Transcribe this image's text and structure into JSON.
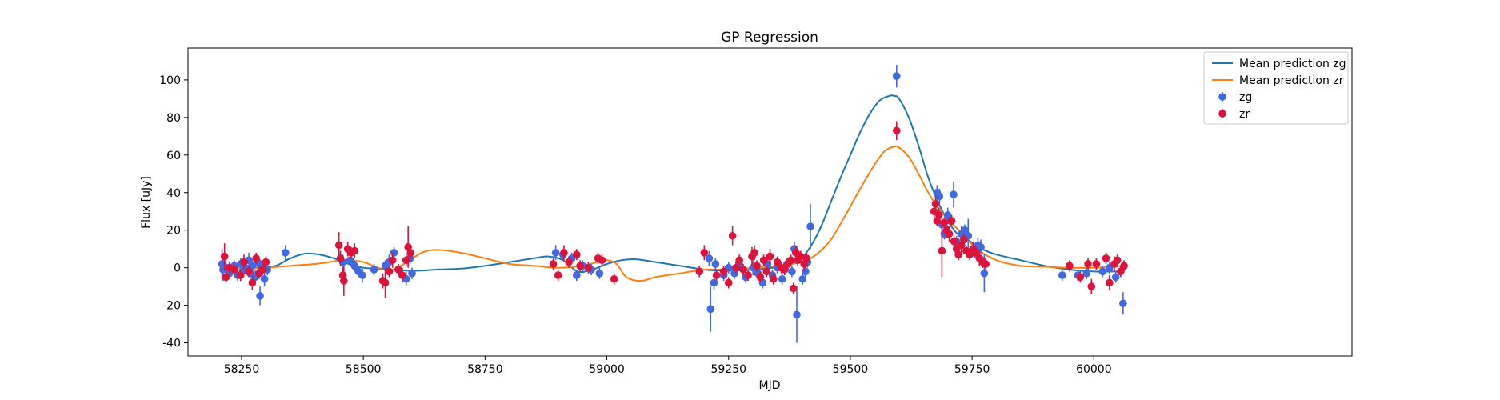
{
  "chart_data": {
    "type": "scatter",
    "title": "GP Regression",
    "xlabel": "MJD",
    "ylabel": "Flux [uJy]",
    "xlim": [
      58140,
      60530
    ],
    "ylim": [
      -47,
      117
    ],
    "x_ticks": [
      58250,
      58500,
      58750,
      59000,
      59250,
      59500,
      59750,
      60000
    ],
    "y_ticks": [
      -40,
      -20,
      0,
      20,
      40,
      60,
      80,
      100
    ],
    "grid": false,
    "legend_position": "top-right",
    "legend": [
      "Mean prediction zg",
      "Mean prediction zr",
      "zg",
      "zr"
    ],
    "lines": [
      {
        "name": "Mean prediction zg",
        "color": "#1f77b4",
        "x": [
          58210,
          58250,
          58290,
          58320,
          58350,
          58380,
          58410,
          58440,
          58470,
          58500,
          58530,
          58560,
          58590,
          58620,
          58650,
          58700,
          58750,
          58800,
          58850,
          58880,
          58910,
          58940,
          58970,
          59000,
          59030,
          59060,
          59100,
          59150,
          59200,
          59230,
          59260,
          59300,
          59340,
          59380,
          59400,
          59420,
          59440,
          59460,
          59480,
          59500,
          59520,
          59540,
          59560,
          59580,
          59590,
          59600,
          59620,
          59640,
          59660,
          59680,
          59700,
          59720,
          59740,
          59770,
          59800,
          59850,
          59900,
          59950,
          60000,
          60040,
          60060
        ],
        "y": [
          0,
          0.5,
          0,
          1,
          5,
          7.5,
          7,
          5,
          2,
          0,
          -0.5,
          -1,
          -1.5,
          -1.5,
          -1,
          -0.5,
          1,
          3,
          5,
          6,
          4,
          -2,
          -1,
          2,
          4,
          4.5,
          3,
          1,
          -1,
          -1.5,
          -1.5,
          -1,
          0,
          2,
          5,
          12,
          22,
          35,
          48,
          60,
          72,
          82,
          89,
          91.5,
          91.5,
          90,
          80,
          65,
          48,
          35,
          25,
          18,
          15,
          10,
          7,
          4,
          1,
          -1,
          -2,
          -2,
          -2
        ]
      },
      {
        "name": "Mean prediction zr",
        "color": "#ff7f0e",
        "x": [
          58210,
          58250,
          58300,
          58350,
          58400,
          58430,
          58460,
          58500,
          58530,
          58560,
          58590,
          58620,
          58650,
          58700,
          58750,
          58800,
          58850,
          58900,
          58950,
          58980,
          59000,
          59020,
          59040,
          59070,
          59100,
          59150,
          59200,
          59250,
          59300,
          59350,
          59400,
          59430,
          59460,
          59490,
          59520,
          59550,
          59570,
          59590,
          59600,
          59620,
          59640,
          59660,
          59680,
          59700,
          59730,
          59760,
          59800,
          59850,
          59900,
          59950,
          60000,
          60040,
          60060
        ],
        "y": [
          0,
          -0.5,
          0,
          1,
          2,
          3,
          4,
          3,
          0,
          -1,
          3,
          8,
          9.5,
          8,
          5,
          2,
          1,
          0,
          1,
          3,
          4,
          2,
          -5,
          -7,
          -5,
          -3,
          -1,
          -1,
          0,
          1,
          3,
          7,
          15,
          28,
          42,
          55,
          62,
          64.5,
          64,
          59,
          50,
          40,
          32,
          26,
          18,
          10,
          4,
          1,
          0.5,
          0,
          0,
          0.5,
          1
        ]
      }
    ],
    "series": [
      {
        "name": "zg",
        "color": "#4169e1",
        "points": [
          [
            58210,
            2,
            8
          ],
          [
            58212,
            -1,
            6
          ],
          [
            58218,
            0,
            4
          ],
          [
            58225,
            -3,
            3
          ],
          [
            58235,
            1,
            3
          ],
          [
            58242,
            -4,
            3
          ],
          [
            58248,
            2,
            3
          ],
          [
            58252,
            -2,
            3
          ],
          [
            58258,
            0,
            3
          ],
          [
            58265,
            4,
            4
          ],
          [
            58268,
            -3,
            3
          ],
          [
            58272,
            1,
            3
          ],
          [
            58278,
            -5,
            4
          ],
          [
            58283,
            3,
            3
          ],
          [
            58288,
            -15,
            5
          ],
          [
            58292,
            1,
            3
          ],
          [
            58297,
            -6,
            4
          ],
          [
            58303,
            -1,
            3
          ],
          [
            58340,
            8,
            4
          ],
          [
            58458,
            3,
            4
          ],
          [
            58473,
            4,
            3
          ],
          [
            58482,
            1,
            3
          ],
          [
            58490,
            -2,
            3
          ],
          [
            58498,
            -4,
            4
          ],
          [
            58522,
            -1,
            3
          ],
          [
            58545,
            1,
            3
          ],
          [
            58553,
            3,
            4
          ],
          [
            58563,
            8,
            3
          ],
          [
            58572,
            -1,
            3
          ],
          [
            58588,
            -6,
            4
          ],
          [
            58596,
            5,
            3
          ],
          [
            58600,
            -3,
            3
          ],
          [
            58895,
            8,
            4
          ],
          [
            58910,
            7,
            3
          ],
          [
            58928,
            5,
            3
          ],
          [
            58938,
            -4,
            3
          ],
          [
            58950,
            1,
            3
          ],
          [
            58968,
            -1,
            3
          ],
          [
            58985,
            -3,
            3
          ],
          [
            59210,
            5,
            4
          ],
          [
            59213,
            -22,
            12
          ],
          [
            59220,
            -8,
            4
          ],
          [
            59223,
            2,
            3
          ],
          [
            59240,
            -4,
            3
          ],
          [
            59250,
            0,
            3
          ],
          [
            59262,
            -3,
            3
          ],
          [
            59272,
            2,
            3
          ],
          [
            59285,
            -5,
            3
          ],
          [
            59300,
            0,
            4
          ],
          [
            59310,
            -3,
            3
          ],
          [
            59320,
            -8,
            3
          ],
          [
            59330,
            2,
            3
          ],
          [
            59340,
            -4,
            3
          ],
          [
            59350,
            0,
            3
          ],
          [
            59360,
            -6,
            3
          ],
          [
            59370,
            2,
            3
          ],
          [
            59380,
            -2,
            3
          ],
          [
            59385,
            10,
            4
          ],
          [
            59390,
            -25,
            15
          ],
          [
            59397,
            6,
            3
          ],
          [
            59402,
            -6,
            3
          ],
          [
            59408,
            -2,
            4
          ],
          [
            59412,
            3,
            3
          ],
          [
            59418,
            22,
            12
          ],
          [
            59595,
            102,
            6
          ],
          [
            59678,
            40,
            4
          ],
          [
            59683,
            38,
            4
          ],
          [
            59688,
            23,
            3
          ],
          [
            59693,
            18,
            3
          ],
          [
            59700,
            28,
            4
          ],
          [
            59705,
            25,
            3
          ],
          [
            59712,
            39,
            7
          ],
          [
            59718,
            14,
            3
          ],
          [
            59723,
            12,
            3
          ],
          [
            59728,
            18,
            4
          ],
          [
            59735,
            20,
            3
          ],
          [
            59742,
            17,
            9
          ],
          [
            59755,
            8,
            3
          ],
          [
            59762,
            12,
            4
          ],
          [
            59768,
            11,
            4
          ],
          [
            59775,
            -3,
            10
          ],
          [
            59935,
            -4,
            3
          ],
          [
            59967,
            -4,
            3
          ],
          [
            59985,
            -3,
            3
          ],
          [
            60018,
            -2,
            3
          ],
          [
            60032,
            0,
            3
          ],
          [
            60045,
            -5,
            3
          ],
          [
            60060,
            -19,
            6
          ]
        ]
      },
      {
        "name": "zr",
        "color": "#dc143c",
        "points": [
          [
            58215,
            6,
            7
          ],
          [
            58218,
            -5,
            3
          ],
          [
            58225,
            0,
            3
          ],
          [
            58235,
            -1,
            3
          ],
          [
            58248,
            -4,
            3
          ],
          [
            58255,
            3,
            4
          ],
          [
            58265,
            -2,
            3
          ],
          [
            58272,
            -8,
            4
          ],
          [
            58280,
            5,
            3
          ],
          [
            58286,
            -3,
            3
          ],
          [
            58293,
            -1,
            3
          ],
          [
            58300,
            3,
            3
          ],
          [
            58450,
            12,
            7
          ],
          [
            58453,
            5,
            4
          ],
          [
            58458,
            -4,
            4
          ],
          [
            58460,
            -7,
            8
          ],
          [
            58468,
            10,
            4
          ],
          [
            58475,
            8,
            3
          ],
          [
            58482,
            9,
            4
          ],
          [
            58540,
            -7,
            4
          ],
          [
            58545,
            -8,
            8
          ],
          [
            58553,
            -2,
            3
          ],
          [
            58560,
            4,
            4
          ],
          [
            58572,
            -1,
            3
          ],
          [
            58580,
            -4,
            4
          ],
          [
            58588,
            4,
            3
          ],
          [
            58592,
            11,
            11
          ],
          [
            58597,
            8,
            4
          ],
          [
            58890,
            2,
            3
          ],
          [
            58900,
            -4,
            3
          ],
          [
            58912,
            8,
            4
          ],
          [
            58922,
            3,
            3
          ],
          [
            58938,
            7,
            3
          ],
          [
            58945,
            1,
            3
          ],
          [
            58962,
            0,
            3
          ],
          [
            58982,
            5,
            3
          ],
          [
            58990,
            4,
            3
          ],
          [
            59015,
            -6,
            3
          ],
          [
            59190,
            -2,
            3
          ],
          [
            59200,
            8,
            4
          ],
          [
            59225,
            -4,
            3
          ],
          [
            59240,
            -2,
            3
          ],
          [
            59250,
            -8,
            3
          ],
          [
            59258,
            17,
            5
          ],
          [
            59265,
            0,
            3
          ],
          [
            59272,
            4,
            3
          ],
          [
            59280,
            -1,
            3
          ],
          [
            59290,
            -4,
            3
          ],
          [
            59298,
            6,
            5
          ],
          [
            59303,
            8,
            4
          ],
          [
            59308,
            1,
            3
          ],
          [
            59315,
            -5,
            3
          ],
          [
            59322,
            4,
            3
          ],
          [
            59328,
            -2,
            3
          ],
          [
            59335,
            6,
            4
          ],
          [
            59342,
            -6,
            3
          ],
          [
            59350,
            3,
            3
          ],
          [
            59358,
            0,
            3
          ],
          [
            59365,
            -1,
            3
          ],
          [
            59372,
            2,
            3
          ],
          [
            59378,
            4,
            3
          ],
          [
            59383,
            -11,
            3
          ],
          [
            59388,
            8,
            4
          ],
          [
            59392,
            4,
            3
          ],
          [
            59398,
            6,
            3
          ],
          [
            59405,
            2,
            4
          ],
          [
            59410,
            5,
            3
          ],
          [
            59595,
            73,
            5
          ],
          [
            59672,
            30,
            4
          ],
          [
            59675,
            34,
            4
          ],
          [
            59678,
            25,
            3
          ],
          [
            59682,
            28,
            4
          ],
          [
            59688,
            9,
            14
          ],
          [
            59693,
            24,
            3
          ],
          [
            59698,
            20,
            4
          ],
          [
            59703,
            18,
            4
          ],
          [
            59708,
            25,
            3
          ],
          [
            59713,
            14,
            3
          ],
          [
            59718,
            10,
            4
          ],
          [
            59722,
            7,
            3
          ],
          [
            59728,
            12,
            4
          ],
          [
            59733,
            15,
            3
          ],
          [
            59738,
            9,
            3
          ],
          [
            59745,
            7,
            3
          ],
          [
            59752,
            10,
            4
          ],
          [
            59758,
            8,
            3
          ],
          [
            59765,
            5,
            4
          ],
          [
            59772,
            3,
            3
          ],
          [
            59778,
            2,
            3
          ],
          [
            59950,
            1,
            3
          ],
          [
            59972,
            -5,
            3
          ],
          [
            59988,
            2,
            3
          ],
          [
            59995,
            -10,
            4
          ],
          [
            60005,
            2,
            3
          ],
          [
            60025,
            5,
            3
          ],
          [
            60032,
            -8,
            4
          ],
          [
            60042,
            2,
            4
          ],
          [
            60048,
            4,
            3
          ],
          [
            60055,
            -2,
            3
          ],
          [
            60062,
            1,
            3
          ]
        ]
      }
    ]
  }
}
